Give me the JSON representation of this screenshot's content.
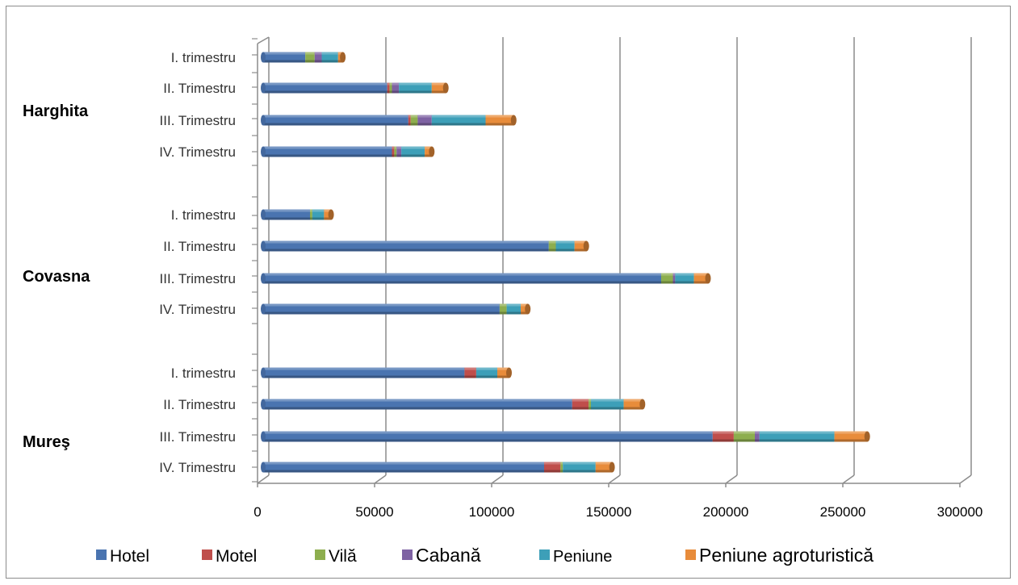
{
  "chart_data": {
    "type": "bar",
    "orientation": "horizontal",
    "stacked": true,
    "title": "",
    "xlabel": "",
    "ylabel": "",
    "xlim": [
      0,
      300000
    ],
    "xticks": [
      0,
      50000,
      100000,
      150000,
      200000,
      250000,
      300000
    ],
    "xtick_labels": [
      "0",
      "50000",
      "100000",
      "150000",
      "200000",
      "250000",
      "300000"
    ],
    "grid": "vertical",
    "legend_position": "bottom",
    "groups": [
      {
        "name": "Harghita",
        "categories": [
          "I. trimestru",
          "II. Trimestru",
          "III. Trimestru",
          "IV. Trimestru"
        ]
      },
      {
        "name": "Covasna",
        "categories": [
          "I. trimestru",
          "II. Trimestru",
          "III. Trimestru",
          "IV. Trimestru"
        ]
      },
      {
        "name": "Mureş",
        "categories": [
          "I. trimestru",
          "II. Trimestru",
          "III. Trimestru",
          "IV. Trimestru"
        ]
      }
    ],
    "series": [
      {
        "name": "Hotel",
        "color": "#4a74b0",
        "values": [
          18000,
          53000,
          62000,
          55000,
          20000,
          122000,
          170000,
          101000,
          86000,
          132000,
          192000,
          120000
        ]
      },
      {
        "name": "Motel",
        "color": "#bf4e4b",
        "values": [
          0,
          1000,
          1000,
          1000,
          0,
          0,
          0,
          0,
          5000,
          7000,
          9000,
          7000
        ]
      },
      {
        "name": "Vilă",
        "color": "#8dae4e",
        "values": [
          4000,
          1000,
          3000,
          1000,
          1000,
          3000,
          5000,
          3000,
          0,
          1000,
          9000,
          1000
        ]
      },
      {
        "name": "Cabană",
        "color": "#7e62a3",
        "values": [
          3000,
          3000,
          6000,
          2000,
          0,
          0,
          1000,
          0,
          0,
          0,
          2000,
          0
        ]
      },
      {
        "name": "Peniune",
        "color": "#3d9fb8",
        "values": [
          7000,
          14000,
          23000,
          10000,
          5000,
          8000,
          8000,
          6000,
          9000,
          14000,
          32000,
          14000
        ]
      },
      {
        "name": "Peniune agroturistică",
        "color": "#e88c3b",
        "values": [
          2000,
          6000,
          12000,
          3000,
          3000,
          5000,
          6000,
          3000,
          5000,
          8000,
          14000,
          7000
        ]
      }
    ]
  }
}
